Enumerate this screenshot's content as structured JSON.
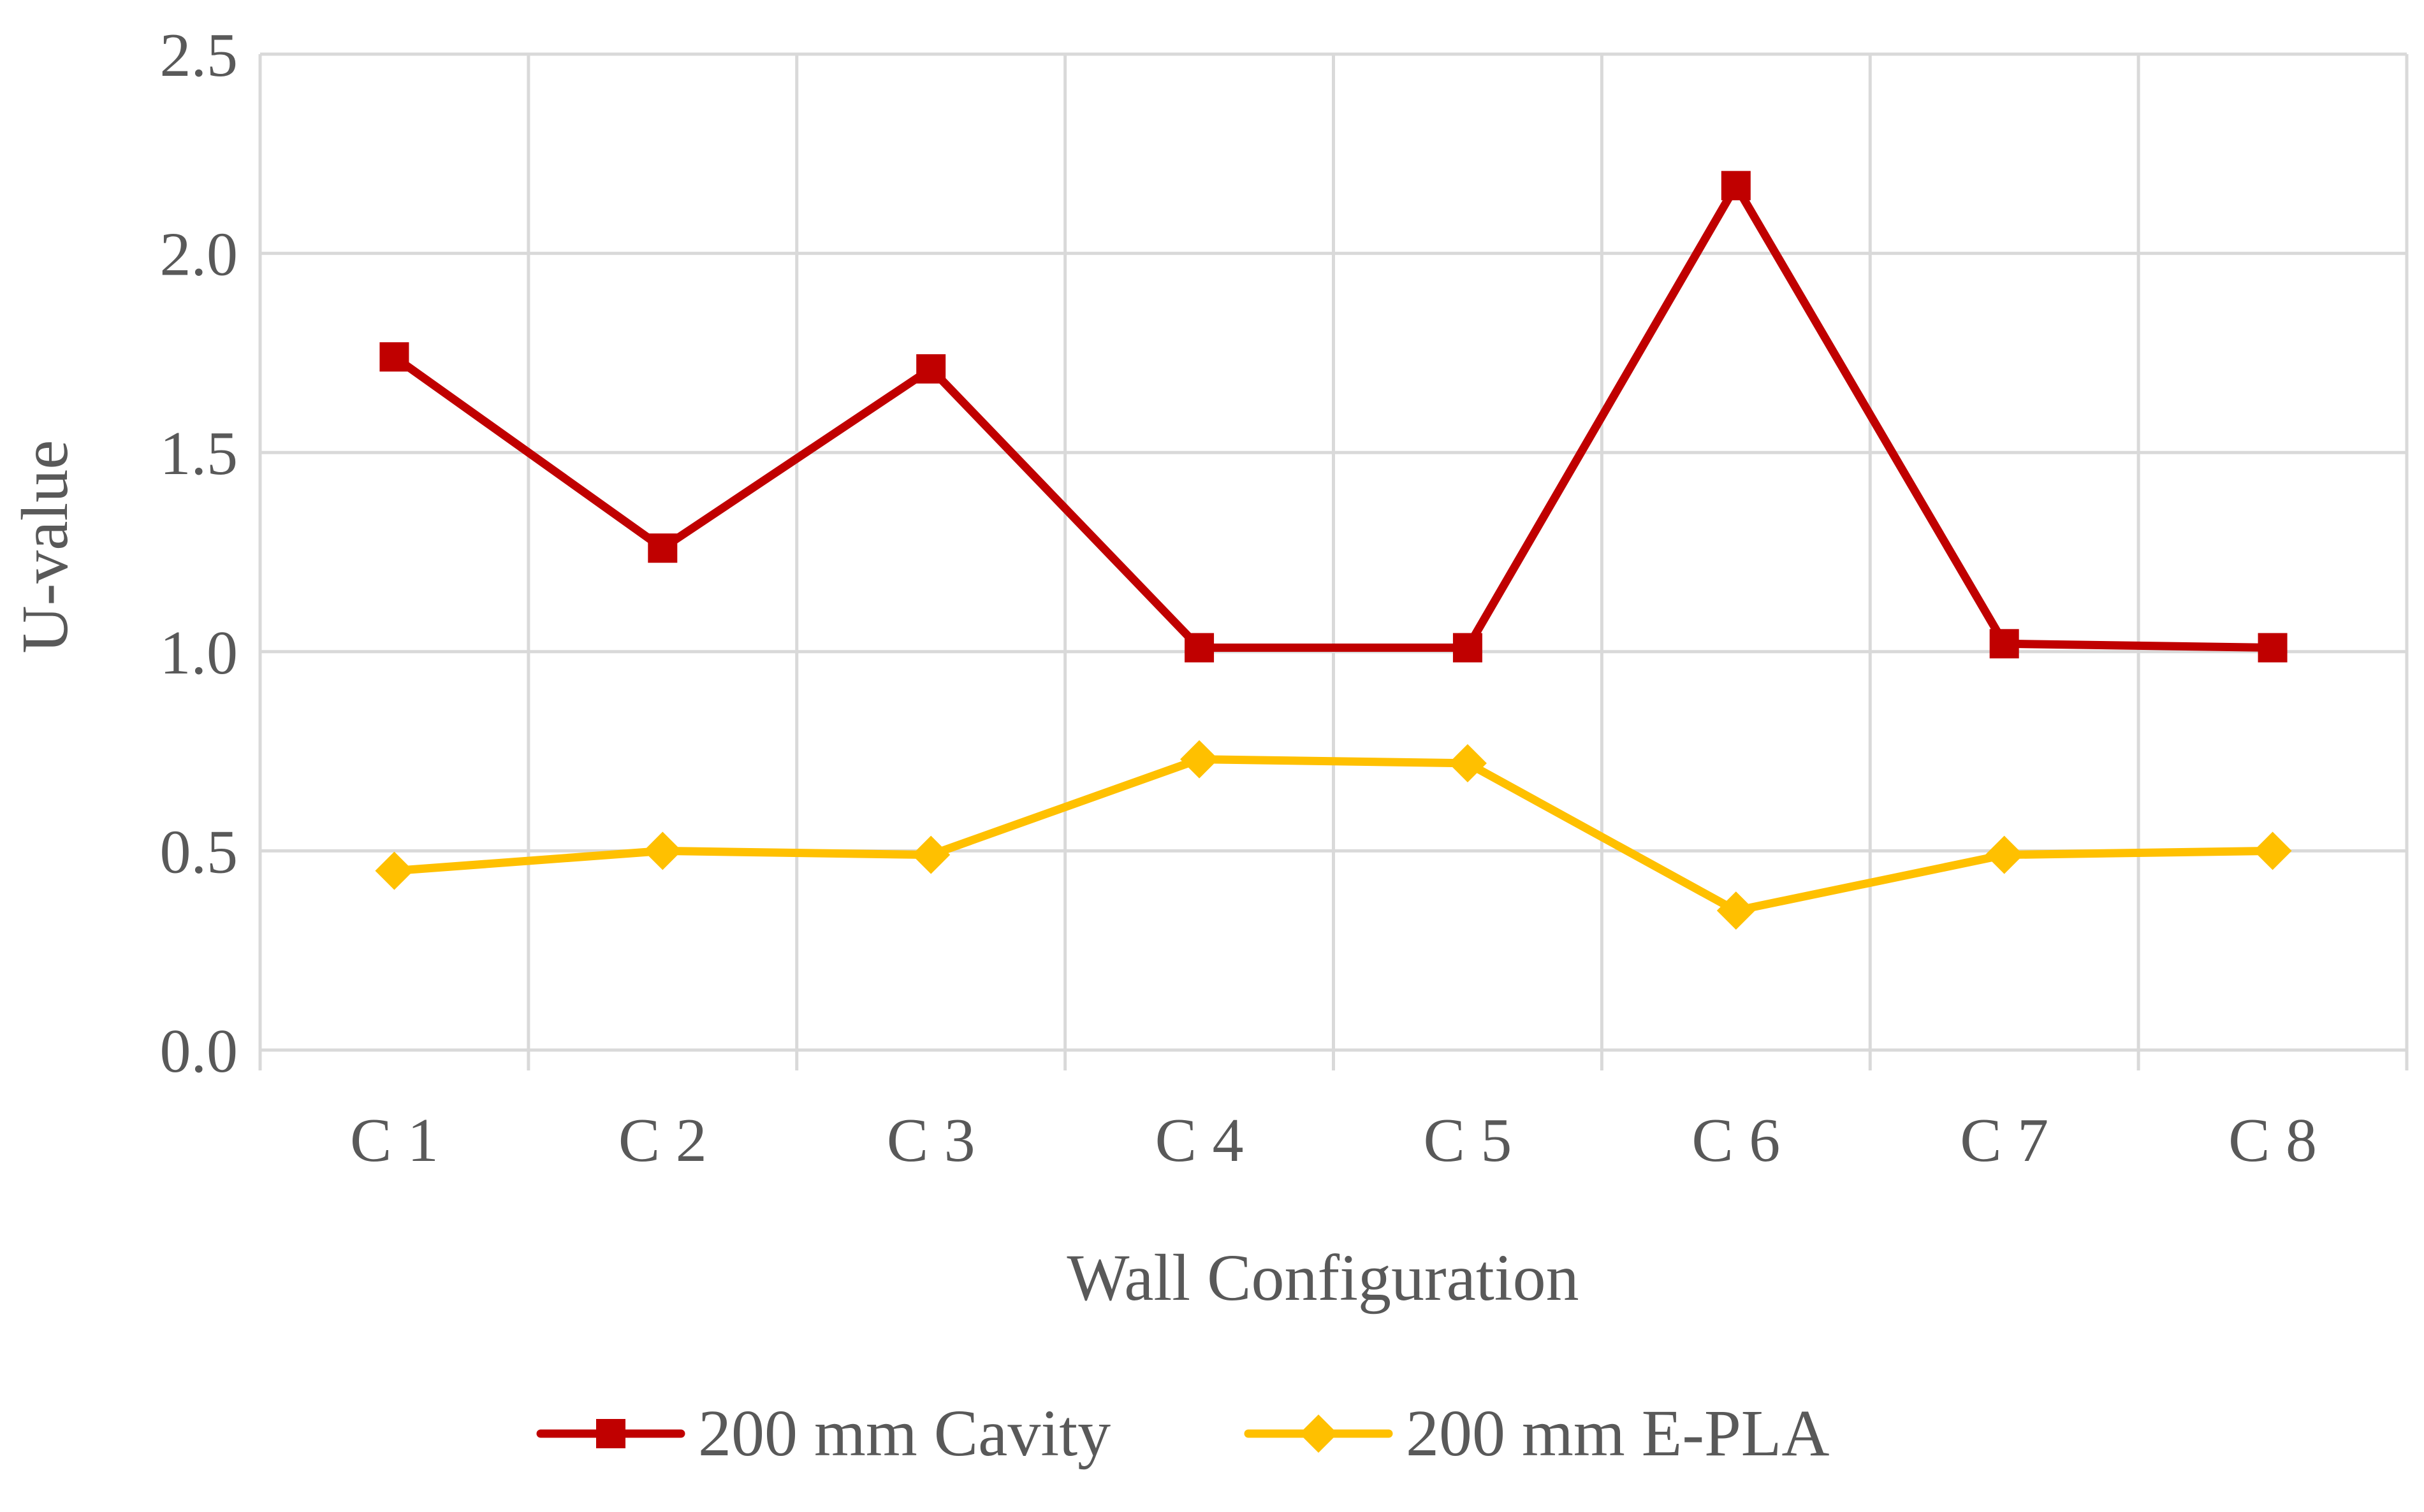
{
  "chart_data": {
    "type": "line",
    "title": "",
    "xlabel": "Wall Configuration",
    "ylabel": "U-value",
    "categories": [
      "C 1",
      "C 2",
      "C 3",
      "C 4",
      "C 5",
      "C 6",
      "C 7",
      "C 8"
    ],
    "ylim": [
      0,
      2.5
    ],
    "yticks": [
      "0.0",
      "0.5",
      "1.0",
      "1.5",
      "2.0",
      "2.5"
    ],
    "grid": true,
    "legend_position": "bottom",
    "series": [
      {
        "name": "200 mm Cavity",
        "color": "#c00000",
        "marker": "square",
        "values": [
          1.74,
          1.26,
          1.71,
          1.01,
          1.01,
          2.17,
          1.02,
          1.01
        ]
      },
      {
        "name": "200 mm E-PLA",
        "color": "#ffc000",
        "marker": "diamond",
        "values": [
          0.45,
          0.5,
          0.49,
          0.73,
          0.72,
          0.35,
          0.49,
          0.5
        ]
      }
    ]
  }
}
